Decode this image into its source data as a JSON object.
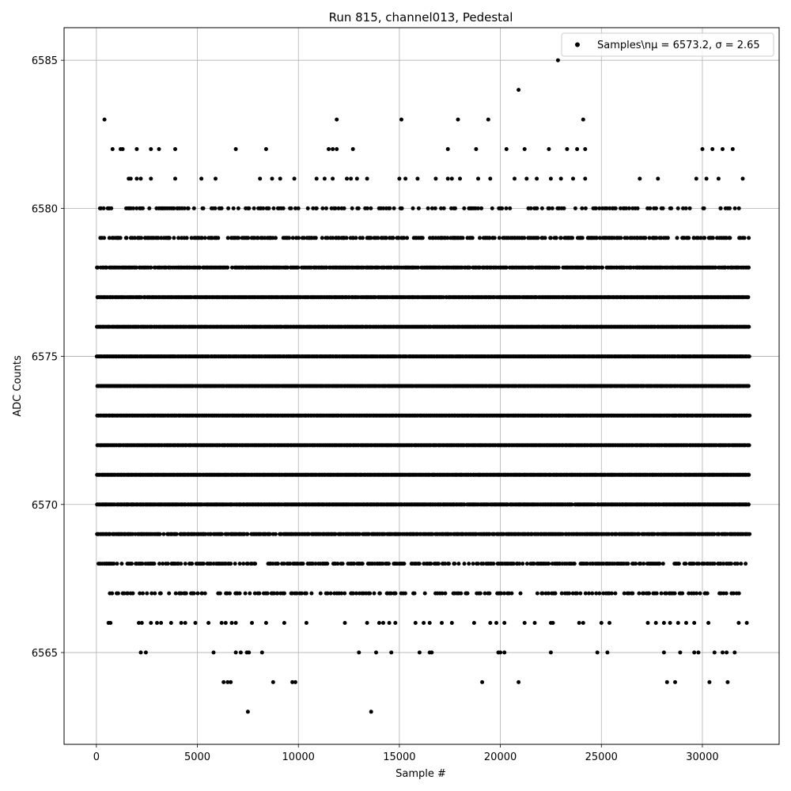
{
  "chart_data": {
    "type": "scatter",
    "title": "Run 815, channel013, Pedestal",
    "xlabel": "Sample #",
    "ylabel": "ADC Counts",
    "xlim": [
      -1600,
      33800
    ],
    "ylim": [
      6561.9,
      6586.1
    ],
    "x_ticks": [
      0,
      5000,
      10000,
      15000,
      20000,
      25000,
      30000
    ],
    "y_ticks": [
      6565,
      6570,
      6575,
      6580,
      6585
    ],
    "grid": true,
    "legend": {
      "position": "top-right",
      "label": "Samples\\nμ = 6573.2, σ = 2.65"
    },
    "marker_color": "#000000",
    "n_samples": 32300,
    "series": [
      {
        "name": "Samples\\nμ = 6573.2, σ = 2.65",
        "bands": [
          {
            "y": 6568,
            "x_start": 100,
            "x_end": 32300,
            "density": 0.55
          },
          {
            "y": 6569,
            "x_start": 0,
            "x_end": 32300,
            "density": 0.85
          },
          {
            "y": 6570,
            "x_start": 0,
            "x_end": 32300,
            "density": 0.97
          },
          {
            "y": 6571,
            "x_start": 0,
            "x_end": 32300,
            "density": 1.0
          },
          {
            "y": 6572,
            "x_start": 0,
            "x_end": 32300,
            "density": 1.0
          },
          {
            "y": 6573,
            "x_start": 0,
            "x_end": 32300,
            "density": 1.0
          },
          {
            "y": 6574,
            "x_start": 0,
            "x_end": 32300,
            "density": 1.0
          },
          {
            "y": 6575,
            "x_start": 0,
            "x_end": 32300,
            "density": 1.0
          },
          {
            "y": 6576,
            "x_start": 0,
            "x_end": 32300,
            "density": 1.0
          },
          {
            "y": 6577,
            "x_start": 0,
            "x_end": 32300,
            "density": 0.97
          },
          {
            "y": 6578,
            "x_start": 0,
            "x_end": 32300,
            "density": 0.85
          },
          {
            "y": 6579,
            "x_start": 100,
            "x_end": 32300,
            "density": 0.55
          }
        ],
        "points": [
          [
            7500,
            6563
          ],
          [
            13600,
            6563
          ],
          [
            6300,
            6564
          ],
          [
            6500,
            6564
          ],
          [
            6650,
            6564
          ],
          [
            8750,
            6564
          ],
          [
            9700,
            6564
          ],
          [
            9850,
            6564
          ],
          [
            19100,
            6564
          ],
          [
            20900,
            6564
          ],
          [
            28250,
            6564
          ],
          [
            28650,
            6564
          ],
          [
            30350,
            6564
          ],
          [
            31250,
            6564
          ],
          [
            2200,
            6565
          ],
          [
            2450,
            6565
          ],
          [
            5800,
            6565
          ],
          [
            6900,
            6565
          ],
          [
            7150,
            6565
          ],
          [
            7450,
            6565
          ],
          [
            7550,
            6565
          ],
          [
            8200,
            6565
          ],
          [
            13000,
            6565
          ],
          [
            13850,
            6565
          ],
          [
            14600,
            6565
          ],
          [
            16000,
            6565
          ],
          [
            16500,
            6565
          ],
          [
            16600,
            6565
          ],
          [
            19900,
            6565
          ],
          [
            20000,
            6565
          ],
          [
            20200,
            6565
          ],
          [
            22500,
            6565
          ],
          [
            24800,
            6565
          ],
          [
            25300,
            6565
          ],
          [
            28100,
            6565
          ],
          [
            28900,
            6565
          ],
          [
            29600,
            6565
          ],
          [
            29800,
            6565
          ],
          [
            30600,
            6565
          ],
          [
            31000,
            6565
          ],
          [
            31200,
            6565
          ],
          [
            31600,
            6565
          ],
          [
            600,
            6566
          ],
          [
            700,
            6566
          ],
          [
            2100,
            6566
          ],
          [
            2250,
            6566
          ],
          [
            2700,
            6566
          ],
          [
            3000,
            6566
          ],
          [
            3200,
            6566
          ],
          [
            3700,
            6566
          ],
          [
            4200,
            6566
          ],
          [
            4400,
            6566
          ],
          [
            4900,
            6566
          ],
          [
            5550,
            6566
          ],
          [
            6200,
            6566
          ],
          [
            6400,
            6566
          ],
          [
            6700,
            6566
          ],
          [
            6900,
            6566
          ],
          [
            7700,
            6566
          ],
          [
            8400,
            6566
          ],
          [
            9300,
            6566
          ],
          [
            10400,
            6566
          ],
          [
            12300,
            6566
          ],
          [
            13400,
            6566
          ],
          [
            14000,
            6566
          ],
          [
            14200,
            6566
          ],
          [
            14500,
            6566
          ],
          [
            14800,
            6566
          ],
          [
            15800,
            6566
          ],
          [
            16200,
            6566
          ],
          [
            16500,
            6566
          ],
          [
            17100,
            6566
          ],
          [
            17600,
            6566
          ],
          [
            18700,
            6566
          ],
          [
            19500,
            6566
          ],
          [
            19800,
            6566
          ],
          [
            20200,
            6566
          ],
          [
            21200,
            6566
          ],
          [
            21700,
            6566
          ],
          [
            22500,
            6566
          ],
          [
            22600,
            6566
          ],
          [
            23900,
            6566
          ],
          [
            24100,
            6566
          ],
          [
            25000,
            6566
          ],
          [
            25400,
            6566
          ],
          [
            27300,
            6566
          ],
          [
            27700,
            6566
          ],
          [
            28100,
            6566
          ],
          [
            28400,
            6566
          ],
          [
            28800,
            6566
          ],
          [
            29200,
            6566
          ],
          [
            29600,
            6566
          ],
          [
            30300,
            6566
          ],
          [
            31800,
            6566
          ],
          [
            32200,
            6566
          ],
          [
            400,
            6583
          ],
          [
            11900,
            6583
          ],
          [
            15100,
            6583
          ],
          [
            17900,
            6583
          ],
          [
            19400,
            6583
          ],
          [
            24100,
            6583
          ],
          [
            800,
            6582
          ],
          [
            1200,
            6582
          ],
          [
            1300,
            6582
          ],
          [
            2000,
            6582
          ],
          [
            2700,
            6582
          ],
          [
            3100,
            6582
          ],
          [
            3900,
            6582
          ],
          [
            6900,
            6582
          ],
          [
            8400,
            6582
          ],
          [
            11500,
            6582
          ],
          [
            11700,
            6582
          ],
          [
            11900,
            6582
          ],
          [
            12700,
            6582
          ],
          [
            17400,
            6582
          ],
          [
            18800,
            6582
          ],
          [
            20300,
            6582
          ],
          [
            21200,
            6582
          ],
          [
            22400,
            6582
          ],
          [
            23300,
            6582
          ],
          [
            23800,
            6582
          ],
          [
            24200,
            6582
          ],
          [
            30000,
            6582
          ],
          [
            30500,
            6582
          ],
          [
            31000,
            6582
          ],
          [
            31500,
            6582
          ],
          [
            1600,
            6581
          ],
          [
            1700,
            6581
          ],
          [
            2000,
            6581
          ],
          [
            2200,
            6581
          ],
          [
            2700,
            6581
          ],
          [
            3900,
            6581
          ],
          [
            5200,
            6581
          ],
          [
            5900,
            6581
          ],
          [
            8100,
            6581
          ],
          [
            8700,
            6581
          ],
          [
            9100,
            6581
          ],
          [
            9800,
            6581
          ],
          [
            10900,
            6581
          ],
          [
            11300,
            6581
          ],
          [
            11700,
            6581
          ],
          [
            12400,
            6581
          ],
          [
            12600,
            6581
          ],
          [
            12900,
            6581
          ],
          [
            13400,
            6581
          ],
          [
            15000,
            6581
          ],
          [
            15300,
            6581
          ],
          [
            15900,
            6581
          ],
          [
            16800,
            6581
          ],
          [
            17400,
            6581
          ],
          [
            17600,
            6581
          ],
          [
            18000,
            6581
          ],
          [
            18900,
            6581
          ],
          [
            19500,
            6581
          ],
          [
            20700,
            6581
          ],
          [
            21300,
            6581
          ],
          [
            21800,
            6581
          ],
          [
            22500,
            6581
          ],
          [
            23000,
            6581
          ],
          [
            23600,
            6581
          ],
          [
            24200,
            6581
          ],
          [
            26900,
            6581
          ],
          [
            27800,
            6581
          ],
          [
            29700,
            6581
          ],
          [
            30200,
            6581
          ],
          [
            30800,
            6581
          ],
          [
            32000,
            6581
          ],
          [
            22850,
            6585
          ],
          [
            20900,
            6584
          ]
        ],
        "band_6567": {
          "y": 6567,
          "x_start": 600,
          "x_end": 32200,
          "density": 0.32
        },
        "band_6580": {
          "y": 6580,
          "x_start": 100,
          "x_end": 32200,
          "density": 0.32
        }
      }
    ]
  }
}
